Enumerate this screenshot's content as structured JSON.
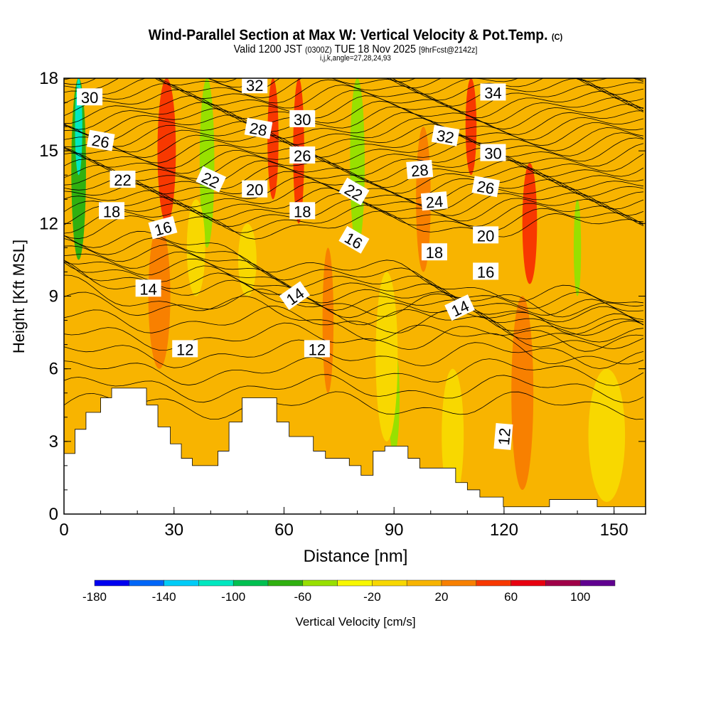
{
  "title": {
    "main": "Wind-Parallel Section at Max W: Vertical Velocity & Pot.Temp.",
    "copyright": "(C)",
    "valid_a": "Valid 1200 JST",
    "valid_b": "(0300Z)",
    "valid_c": "TUE 18 Nov 2025",
    "valid_d": "[9hrFcst@2142z]",
    "indices": "i,j,k,angle=27,28,24,93"
  },
  "chart_data": {
    "type": "heatmap",
    "xlabel": "Distance [nm]",
    "ylabel": "Height [Kft MSL]",
    "xlim": [
      0,
      158.6
    ],
    "ylim": [
      0,
      18
    ],
    "xticks": [
      0,
      30,
      60,
      90,
      120,
      150
    ],
    "yticks": [
      0,
      3,
      6,
      9,
      12,
      15,
      18
    ],
    "colorbar": {
      "label": "Vertical Velocity [cm/s]",
      "min": -180,
      "step": 20,
      "colors": [
        "#0000f0",
        "#0066f8",
        "#00ccf8",
        "#00e8c0",
        "#00c050",
        "#30b010",
        "#98e000",
        "#f8f800",
        "#f8d800",
        "#f8b400",
        "#f88000",
        "#f83800",
        "#e80010",
        "#a00048",
        "#600090"
      ],
      "ticks": [
        -180,
        -140,
        -100,
        -60,
        -20,
        20,
        60,
        100
      ]
    },
    "background_value": 10,
    "w_features": [
      {
        "d": 4,
        "h0": 10.5,
        "h1": 18,
        "w": 4,
        "value": -70
      },
      {
        "d": 4,
        "h0": 14,
        "h1": 18,
        "w": 2,
        "value": -110
      },
      {
        "d": 28,
        "h0": 12,
        "h1": 18,
        "w": 5,
        "value": 50
      },
      {
        "d": 26,
        "h0": 6,
        "h1": 12,
        "w": 6,
        "value": 30
      },
      {
        "d": 39,
        "h0": 11,
        "h1": 18,
        "w": 4,
        "value": -60
      },
      {
        "d": 36,
        "h0": 9,
        "h1": 13,
        "w": 5,
        "value": -10
      },
      {
        "d": 57,
        "h0": 13,
        "h1": 18,
        "w": 3,
        "value": 40
      },
      {
        "d": 64,
        "h0": 12,
        "h1": 18,
        "w": 3,
        "value": 45
      },
      {
        "d": 72,
        "h0": 5,
        "h1": 11,
        "w": 3,
        "value": 30
      },
      {
        "d": 80,
        "h0": 11,
        "h1": 18,
        "w": 4,
        "value": -60
      },
      {
        "d": 90,
        "h0": 2.5,
        "h1": 7,
        "w": 3,
        "value": -60
      },
      {
        "d": 88,
        "h0": 3,
        "h1": 10,
        "w": 6,
        "value": -10
      },
      {
        "d": 98,
        "h0": 10,
        "h1": 16,
        "w": 4,
        "value": 30
      },
      {
        "d": 111,
        "h0": 14,
        "h1": 18,
        "w": 3,
        "value": 50
      },
      {
        "d": 127,
        "h0": 9.5,
        "h1": 14.5,
        "w": 4,
        "value": 50
      },
      {
        "d": 125,
        "h0": 1,
        "h1": 9,
        "w": 6,
        "value": 30
      },
      {
        "d": 140,
        "h0": 9,
        "h1": 13,
        "w": 2,
        "value": -50
      },
      {
        "d": 148,
        "h0": 0.5,
        "h1": 6,
        "w": 10,
        "value": -10
      },
      {
        "d": 106,
        "h0": 0.5,
        "h1": 6,
        "w": 6,
        "value": -10
      },
      {
        "d": 50,
        "h0": 9,
        "h1": 12,
        "w": 5,
        "value": -10
      }
    ],
    "terrain": [
      [
        0,
        2.5
      ],
      [
        3,
        2.5
      ],
      [
        3,
        3.5
      ],
      [
        6,
        3.5
      ],
      [
        6,
        4.2
      ],
      [
        10,
        4.2
      ],
      [
        10,
        4.8
      ],
      [
        13,
        4.8
      ],
      [
        13,
        5.2
      ],
      [
        22.5,
        5.2
      ],
      [
        22.5,
        4.5
      ],
      [
        25.6,
        4.5
      ],
      [
        25.6,
        3.6
      ],
      [
        29,
        3.6
      ],
      [
        29,
        2.9
      ],
      [
        32,
        2.9
      ],
      [
        32,
        2.3
      ],
      [
        35,
        2.3
      ],
      [
        35,
        2.0
      ],
      [
        42,
        2.0
      ],
      [
        42,
        2.6
      ],
      [
        45,
        2.6
      ],
      [
        45,
        3.8
      ],
      [
        48.6,
        3.8
      ],
      [
        48.6,
        4.8
      ],
      [
        58,
        4.8
      ],
      [
        58,
        3.8
      ],
      [
        61.4,
        3.8
      ],
      [
        61.4,
        3.2
      ],
      [
        68,
        3.2
      ],
      [
        68,
        2.6
      ],
      [
        71.3,
        2.6
      ],
      [
        71.3,
        2.3
      ],
      [
        77.8,
        2.3
      ],
      [
        77.8,
        2.0
      ],
      [
        81,
        2.0
      ],
      [
        81,
        1.6
      ],
      [
        84.3,
        1.6
      ],
      [
        84.3,
        2.6
      ],
      [
        87.5,
        2.6
      ],
      [
        87.5,
        2.8
      ],
      [
        93.8,
        2.8
      ],
      [
        93.8,
        2.3
      ],
      [
        97,
        2.3
      ],
      [
        97,
        1.9
      ],
      [
        106.8,
        1.9
      ],
      [
        106.8,
        1.3
      ],
      [
        110,
        1.3
      ],
      [
        110,
        1.0
      ],
      [
        113.4,
        1.0
      ],
      [
        113.4,
        0.7
      ],
      [
        119.8,
        0.7
      ],
      [
        119.8,
        0.3
      ],
      [
        132.4,
        0.3
      ],
      [
        132.4,
        0.6
      ],
      [
        145.4,
        0.6
      ],
      [
        145.4,
        0.3
      ],
      [
        158.6,
        0.3
      ]
    ],
    "theta_labels": [
      {
        "v": "30",
        "d": 7,
        "h": 17.2,
        "r": 0
      },
      {
        "v": "26",
        "d": 10,
        "h": 15.4,
        "r": 10
      },
      {
        "v": "22",
        "d": 16,
        "h": 13.8,
        "r": 0
      },
      {
        "v": "18",
        "d": 13,
        "h": 12.5,
        "r": 0
      },
      {
        "v": "16",
        "d": 27,
        "h": 11.8,
        "r": -15
      },
      {
        "v": "14",
        "d": 23,
        "h": 9.3,
        "r": 0
      },
      {
        "v": "12",
        "d": 33,
        "h": 6.8,
        "r": 0
      },
      {
        "v": "22",
        "d": 40,
        "h": 13.8,
        "r": 25
      },
      {
        "v": "32",
        "d": 52,
        "h": 17.7,
        "r": 0
      },
      {
        "v": "28",
        "d": 53,
        "h": 15.9,
        "r": 10
      },
      {
        "v": "20",
        "d": 52,
        "h": 13.4,
        "r": 0
      },
      {
        "v": "30",
        "d": 65,
        "h": 16.3,
        "r": 0
      },
      {
        "v": "26",
        "d": 65,
        "h": 14.8,
        "r": 0
      },
      {
        "v": "18",
        "d": 65,
        "h": 12.5,
        "r": 0
      },
      {
        "v": "14",
        "d": 63,
        "h": 9.0,
        "r": -35
      },
      {
        "v": "12",
        "d": 69,
        "h": 6.8,
        "r": 0
      },
      {
        "v": "22",
        "d": 79,
        "h": 13.3,
        "r": 30
      },
      {
        "v": "16",
        "d": 79,
        "h": 11.3,
        "r": 30
      },
      {
        "v": "32",
        "d": 104,
        "h": 15.6,
        "r": 10
      },
      {
        "v": "28",
        "d": 97,
        "h": 14.2,
        "r": -5
      },
      {
        "v": "24",
        "d": 101,
        "h": 12.9,
        "r": -5
      },
      {
        "v": "18",
        "d": 101,
        "h": 10.8,
        "r": 0
      },
      {
        "v": "14",
        "d": 108,
        "h": 8.5,
        "r": -25
      },
      {
        "v": "34",
        "d": 117,
        "h": 17.4,
        "r": 0
      },
      {
        "v": "30",
        "d": 117,
        "h": 14.9,
        "r": 0
      },
      {
        "v": "26",
        "d": 115,
        "h": 13.5,
        "r": 10
      },
      {
        "v": "20",
        "d": 115,
        "h": 11.5,
        "r": 0
      },
      {
        "v": "16",
        "d": 115,
        "h": 10.0,
        "r": 0
      },
      {
        "v": "12",
        "d": 120,
        "h": 3.2,
        "r": -85
      }
    ]
  }
}
